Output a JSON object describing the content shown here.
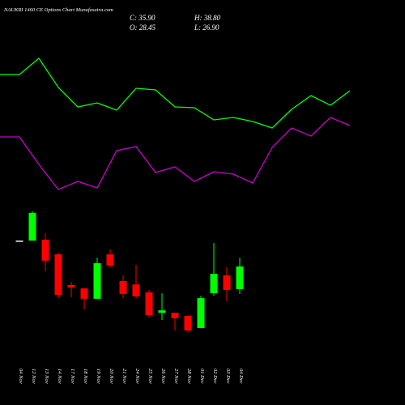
{
  "chart_data": [
    {
      "type": "candlestick",
      "title": "NAUKRI 1460 CE Options Chart Munafasutra.com",
      "ohlc_labels": [
        "C: 35.90",
        "H: 38.80",
        "O: 28.45",
        "L: 26.90"
      ],
      "up_color": "#00ff00",
      "down_color": "#ff0000",
      "flat_color": "#ffffff",
      "ylim": [
        11.7,
        56.9
      ],
      "categories": [
        "04 Nov",
        "12 Nov",
        "13 Nov",
        "14 Nov",
        "17 Nov",
        "18 Nov",
        "19 Nov",
        "20 Nov",
        "21 Nov",
        "24 Nov",
        "25 Nov",
        "26 Nov",
        "27 Nov",
        "28 Nov",
        "01 Dec",
        "02 Dec",
        "03 Dec",
        "04 Dec"
      ],
      "open": [
        44.4,
        44.4,
        44.7,
        39.9,
        29.8,
        28.7,
        25.3,
        39.9,
        31.1,
        30.0,
        27.4,
        20.7,
        20.7,
        19.7,
        15.7,
        27.1,
        33.0,
        28.45
      ],
      "high": [
        44.4,
        54.0,
        46.8,
        40.4,
        30.8,
        28.7,
        38.8,
        41.5,
        33.0,
        36.4,
        28.2,
        27.1,
        20.7,
        19.7,
        26.3,
        43.6,
        35.6,
        38.8
      ],
      "low": [
        44.4,
        44.4,
        34.3,
        25.5,
        25.8,
        21.8,
        25.3,
        35.6,
        25.5,
        25.3,
        19.1,
        18.3,
        14.9,
        14.4,
        15.7,
        26.3,
        24.5,
        26.9
      ],
      "close": [
        44.4,
        53.5,
        37.8,
        26.6,
        29.0,
        25.3,
        37.0,
        36.2,
        26.9,
        26.1,
        19.9,
        21.5,
        18.9,
        14.9,
        25.5,
        33.5,
        28.2,
        35.9
      ]
    },
    {
      "type": "line",
      "xlim": [
        0,
        18
      ],
      "ylim": [
        0,
        250
      ],
      "x": [
        0,
        1,
        2,
        3,
        4,
        5,
        6,
        7,
        8,
        9,
        10,
        11,
        12,
        13,
        14,
        15,
        16,
        17,
        18
      ],
      "series": [
        {
          "color": "#00ff00",
          "values": [
            158,
            158,
            178,
            142,
            118,
            123,
            114,
            141,
            139,
            118,
            117,
            102,
            105,
            100,
            92,
            115,
            132,
            120,
            138
          ]
        },
        {
          "color": "#cc00cc",
          "values": [
            81,
            81,
            47,
            16,
            26,
            18,
            64,
            69,
            37,
            44,
            26,
            38,
            35,
            24,
            68,
            92,
            82,
            105,
            95
          ]
        }
      ]
    }
  ]
}
